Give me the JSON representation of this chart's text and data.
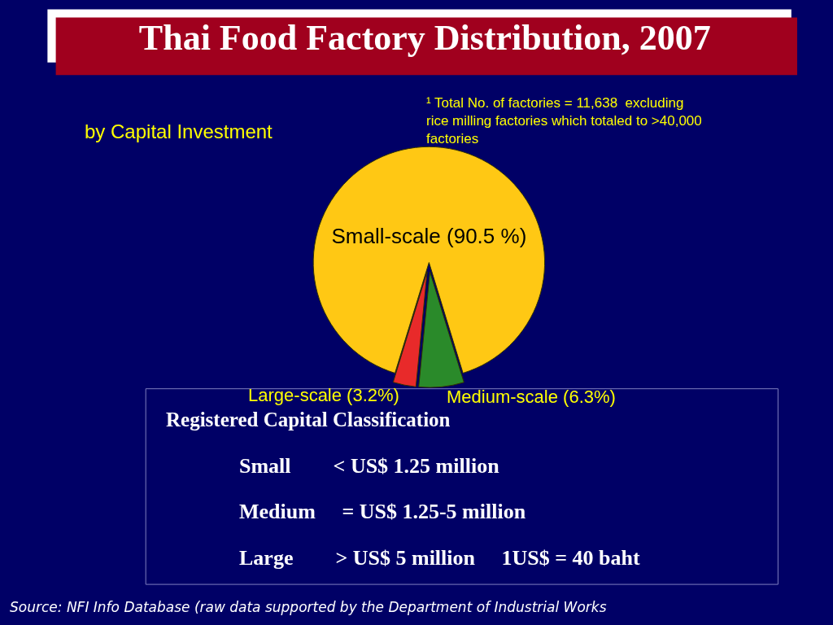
{
  "chart_data": {
    "type": "pie",
    "title": "Thai Food Factory Distribution, 2007",
    "subtitle": "by Capital Investment",
    "categories": [
      "Small-scale (90.5 %)",
      "Medium-scale (6.3%)",
      "Large-scale (3.2%)"
    ],
    "values": [
      90.5,
      6.3,
      3.2
    ],
    "colors": [
      "#ffc814",
      "#2a8a2a",
      "#e82a2a"
    ],
    "legend": false,
    "annotations": [
      "¹ Total No. of factories = 11,638  excluding rice milling factories which totaled to >40,000 factories",
      "Registered Capital Classification",
      "Small        < US$ 1.25 million",
      "Medium     = US$ 1.25-5 million",
      "Large        > US$ 5 million     1US$ = 40 baht",
      "Source: NFI Info Database (raw data supported by the Department of Industrial Works"
    ]
  }
}
